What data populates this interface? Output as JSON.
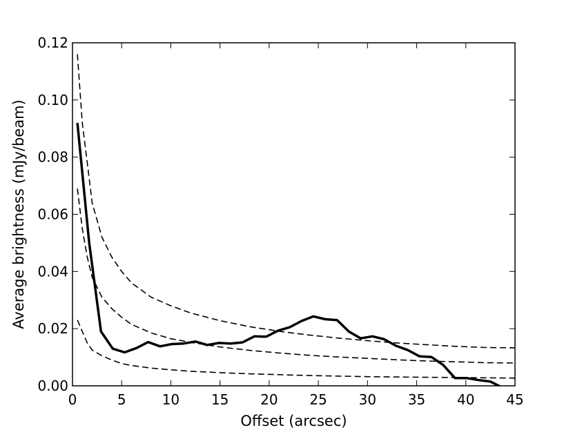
{
  "chart_data": {
    "type": "line",
    "xlabel": "Offset (arcsec)",
    "ylabel": "Average brightness (mJy/beam)",
    "xlim": [
      0,
      45
    ],
    "ylim": [
      0.0,
      0.12
    ],
    "xticks": [
      0,
      5,
      10,
      15,
      20,
      25,
      30,
      35,
      40,
      45
    ],
    "yticks": [
      0.0,
      0.02,
      0.04,
      0.06,
      0.08,
      0.1,
      0.12
    ],
    "xtick_labels": [
      "0",
      "5",
      "10",
      "15",
      "20",
      "25",
      "30",
      "35",
      "40",
      "45"
    ],
    "ytick_labels": [
      "0.00",
      "0.02",
      "0.04",
      "0.06",
      "0.08",
      "0.10",
      "0.12"
    ],
    "grid": false,
    "legend": "none",
    "series": [
      {
        "style": "solid",
        "color": "#000000",
        "x": [
          0.5,
          1.7,
          2.9,
          4.1,
          5.3,
          6.5,
          7.7,
          8.9,
          10.1,
          11.3,
          12.5,
          13.7,
          14.9,
          16.1,
          17.3,
          18.5,
          19.7,
          20.9,
          22.1,
          23.3,
          24.5,
          25.7,
          26.9,
          28.1,
          29.3,
          30.5,
          31.7,
          32.9,
          34.1,
          35.3,
          36.5,
          37.7,
          38.9,
          40.1,
          41.3,
          42.5,
          43.7
        ],
        "y": [
          0.092,
          0.05,
          0.019,
          0.013,
          0.0117,
          0.0132,
          0.0153,
          0.0138,
          0.0146,
          0.0148,
          0.0155,
          0.0143,
          0.015,
          0.0148,
          0.0152,
          0.0173,
          0.0172,
          0.0193,
          0.0205,
          0.0227,
          0.0243,
          0.0233,
          0.023,
          0.019,
          0.0166,
          0.0173,
          0.0163,
          0.014,
          0.0125,
          0.0103,
          0.0101,
          0.0073,
          0.0027,
          0.0027,
          0.002,
          0.0015,
          -0.0006
        ]
      },
      {
        "style": "dashed",
        "color": "#000000",
        "x": [
          0.5,
          1.0,
          1.5,
          2.0,
          3.0,
          4.0,
          5.0,
          6.0,
          8.0,
          10.0,
          12.0,
          15.0,
          18.0,
          21.0,
          24.0,
          27.0,
          30.0,
          33.0,
          36.0,
          39.0,
          42.0,
          45.0
        ],
        "y": [
          0.116,
          0.092,
          0.078,
          0.064,
          0.052,
          0.045,
          0.04,
          0.036,
          0.031,
          0.028,
          0.0255,
          0.0228,
          0.0207,
          0.0191,
          0.0178,
          0.0167,
          0.0158,
          0.015,
          0.0144,
          0.0138,
          0.0134,
          0.0133
        ]
      },
      {
        "style": "dashed",
        "color": "#000000",
        "x": [
          0.5,
          1.0,
          1.5,
          2.0,
          3.0,
          4.0,
          5.0,
          6.0,
          8.0,
          10.0,
          12.0,
          15.0,
          18.0,
          21.0,
          24.0,
          27.0,
          30.0,
          33.0,
          36.0,
          39.0,
          42.0,
          45.0
        ],
        "y": [
          0.069,
          0.055,
          0.045,
          0.038,
          0.031,
          0.027,
          0.024,
          0.0215,
          0.0185,
          0.0165,
          0.0152,
          0.0136,
          0.0124,
          0.0115,
          0.0107,
          0.0101,
          0.0096,
          0.0091,
          0.0087,
          0.0084,
          0.0081,
          0.008
        ]
      },
      {
        "style": "dashed",
        "color": "#000000",
        "x": [
          0.5,
          1.0,
          1.5,
          2.0,
          3.0,
          4.0,
          5.0,
          6.0,
          8.0,
          10.0,
          12.0,
          15.0,
          18.0,
          21.0,
          24.0,
          27.0,
          30.0,
          33.0,
          36.0,
          39.0,
          42.0,
          45.0
        ],
        "y": [
          0.023,
          0.019,
          0.015,
          0.0125,
          0.0105,
          0.009,
          0.0078,
          0.0071,
          0.0062,
          0.0056,
          0.0051,
          0.0046,
          0.0042,
          0.0039,
          0.0036,
          0.0034,
          0.0032,
          0.0031,
          0.003,
          0.0029,
          0.0028,
          0.0027
        ]
      }
    ]
  }
}
